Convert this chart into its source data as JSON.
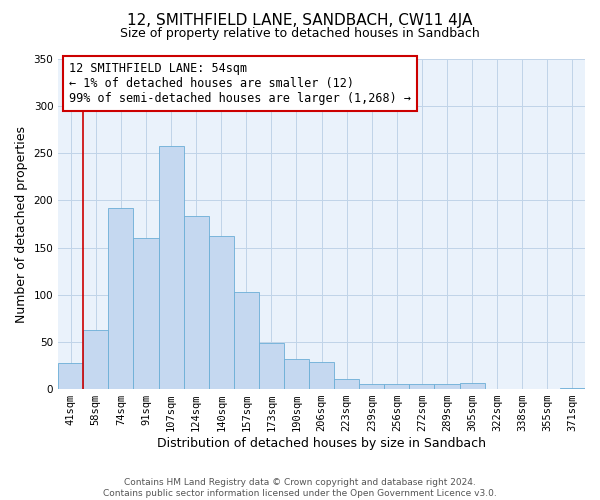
{
  "title": "12, SMITHFIELD LANE, SANDBACH, CW11 4JA",
  "subtitle": "Size of property relative to detached houses in Sandbach",
  "xlabel": "Distribution of detached houses by size in Sandbach",
  "ylabel": "Number of detached properties",
  "categories": [
    "41sqm",
    "58sqm",
    "74sqm",
    "91sqm",
    "107sqm",
    "124sqm",
    "140sqm",
    "157sqm",
    "173sqm",
    "190sqm",
    "206sqm",
    "223sqm",
    "239sqm",
    "256sqm",
    "272sqm",
    "289sqm",
    "305sqm",
    "322sqm",
    "338sqm",
    "355sqm",
    "371sqm"
  ],
  "values": [
    28,
    63,
    192,
    160,
    258,
    183,
    162,
    103,
    49,
    32,
    29,
    11,
    5,
    5,
    5,
    5,
    6,
    0,
    0,
    0,
    1
  ],
  "bar_color": "#c5d8f0",
  "bar_edge_color": "#6baed6",
  "annotation_line1": "12 SMITHFIELD LANE: 54sqm",
  "annotation_line2": "← 1% of detached houses are smaller (12)",
  "annotation_line3": "99% of semi-detached houses are larger (1,268) →",
  "redline_x": 0.5,
  "ylim": [
    0,
    350
  ],
  "yticks": [
    0,
    50,
    100,
    150,
    200,
    250,
    300,
    350
  ],
  "footer_line1": "Contains HM Land Registry data © Crown copyright and database right 2024.",
  "footer_line2": "Contains public sector information licensed under the Open Government Licence v3.0.",
  "bg_color": "#ffffff",
  "plot_bg_color": "#eaf2fb",
  "grid_color": "#c0d4e8",
  "annotation_box_color": "#ffffff",
  "annotation_box_edge_color": "#cc0000",
  "title_fontsize": 11,
  "subtitle_fontsize": 9,
  "ylabel_fontsize": 9,
  "xlabel_fontsize": 9,
  "tick_fontsize": 7.5,
  "annotation_fontsize": 8.5,
  "footer_fontsize": 6.5
}
